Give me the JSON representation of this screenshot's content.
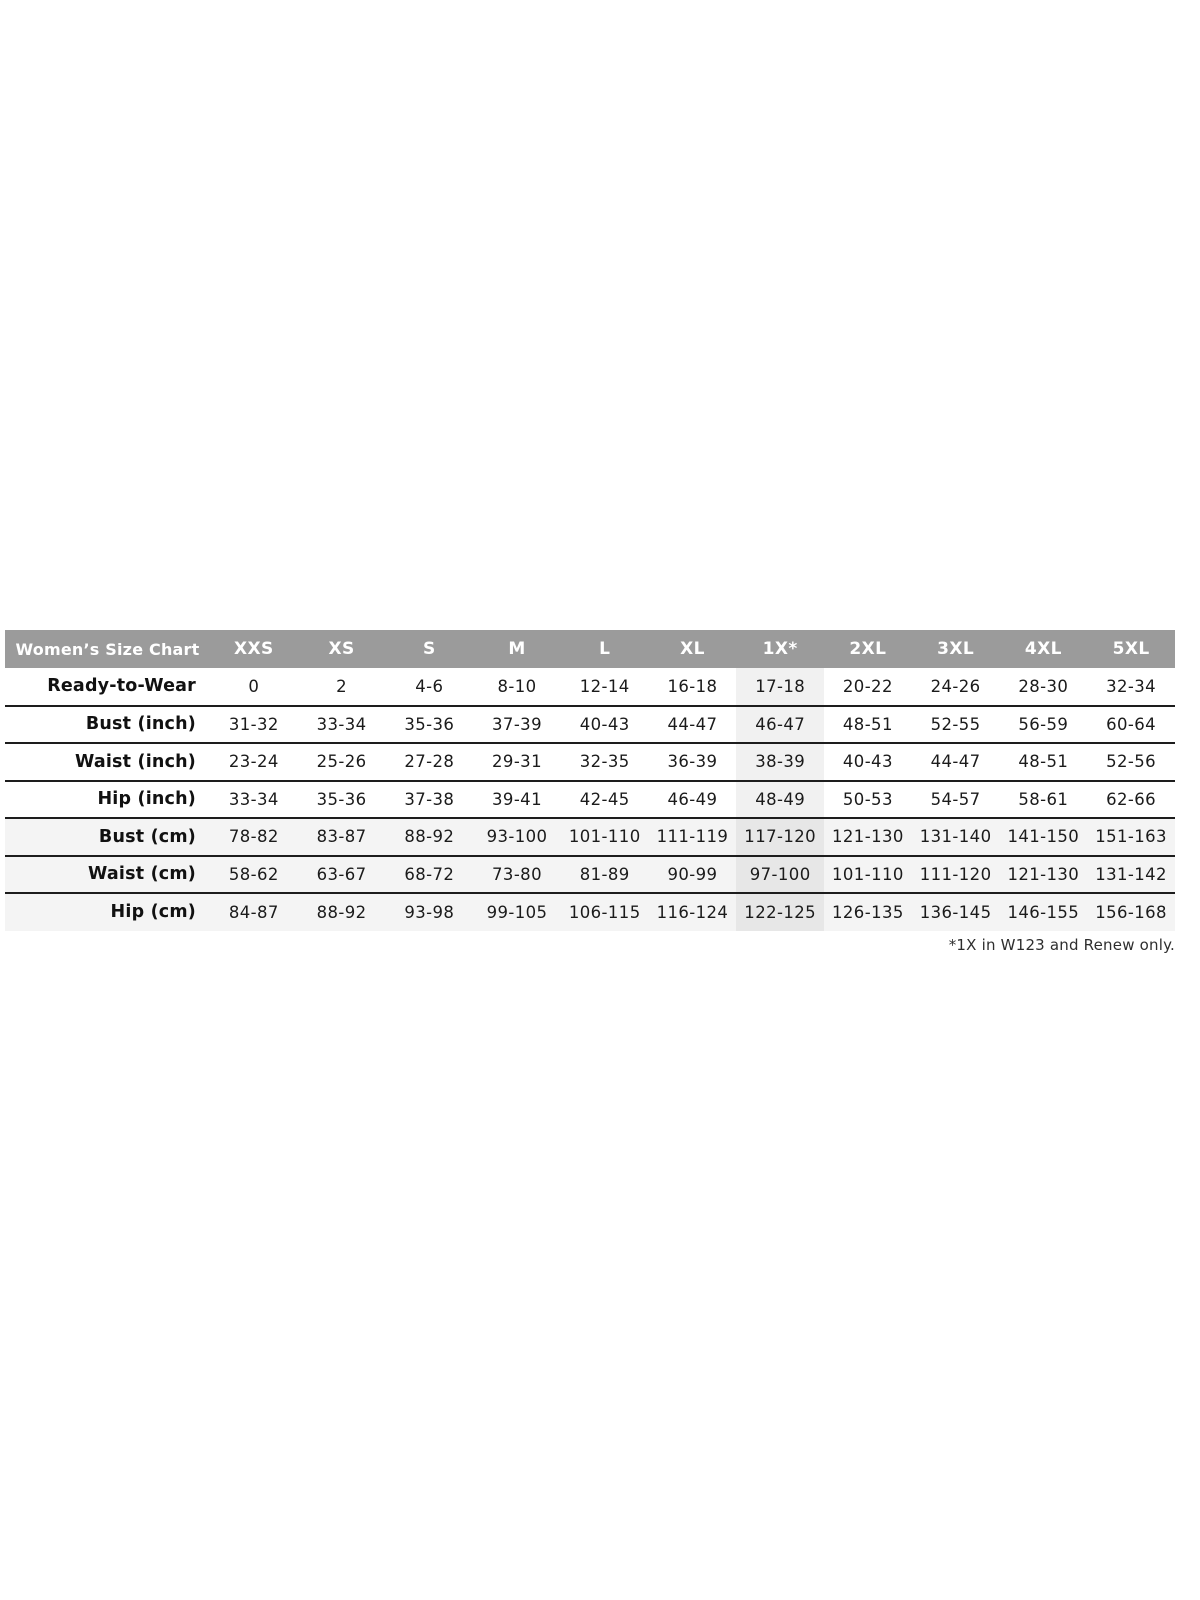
{
  "chart_data": {
    "type": "table",
    "title": "Women’s Size Chart",
    "columns": [
      "Women’s Size Chart",
      "XXS",
      "XS",
      "S",
      "M",
      "L",
      "XL",
      "1X*",
      "2XL",
      "3XL",
      "4XL",
      "5XL"
    ],
    "rows": [
      {
        "label": "Ready-to-Wear",
        "values": [
          "0",
          "2",
          "4-6",
          "8-10",
          "12-14",
          "16-18",
          "17-18",
          "20-22",
          "24-26",
          "28-30",
          "32-34"
        ]
      },
      {
        "label": "Bust (inch)",
        "values": [
          "31-32",
          "33-34",
          "35-36",
          "37-39",
          "40-43",
          "44-47",
          "46-47",
          "48-51",
          "52-55",
          "56-59",
          "60-64"
        ]
      },
      {
        "label": "Waist (inch)",
        "values": [
          "23-24",
          "25-26",
          "27-28",
          "29-31",
          "32-35",
          "36-39",
          "38-39",
          "40-43",
          "44-47",
          "48-51",
          "52-56"
        ]
      },
      {
        "label": "Hip (inch)",
        "values": [
          "33-34",
          "35-36",
          "37-38",
          "39-41",
          "42-45",
          "46-49",
          "48-49",
          "50-53",
          "54-57",
          "58-61",
          "62-66"
        ]
      },
      {
        "label": "Bust (cm)",
        "values": [
          "78-82",
          "83-87",
          "88-92",
          "93-100",
          "101-110",
          "111-119",
          "117-120",
          "121-130",
          "131-140",
          "141-150",
          "151-163"
        ]
      },
      {
        "label": "Waist (cm)",
        "values": [
          "58-62",
          "63-67",
          "68-72",
          "73-80",
          "81-89",
          "90-99",
          "97-100",
          "101-110",
          "111-120",
          "121-130",
          "131-142"
        ]
      },
      {
        "label": "Hip (cm)",
        "values": [
          "84-87",
          "88-92",
          "93-98",
          "99-105",
          "106-115",
          "116-124",
          "122-125",
          "126-135",
          "136-145",
          "146-155",
          "156-168"
        ]
      }
    ],
    "highlighted_column": "1X*",
    "footnote": "*1X in W123 and Renew only.",
    "layout": {
      "legend_position": "none",
      "grid": "horizontal-rules"
    }
  },
  "colors": {
    "header_bg": "#9b9b9b",
    "header_text": "#ffffff",
    "shaded_row_bg": "#f4f4f4",
    "highlight_col_bg": "#f1f1f1",
    "highlight_col_bg_on_shaded": "#e7e7e7",
    "rule": "#1d1d1d",
    "body_text": "#1b1b1b"
  }
}
